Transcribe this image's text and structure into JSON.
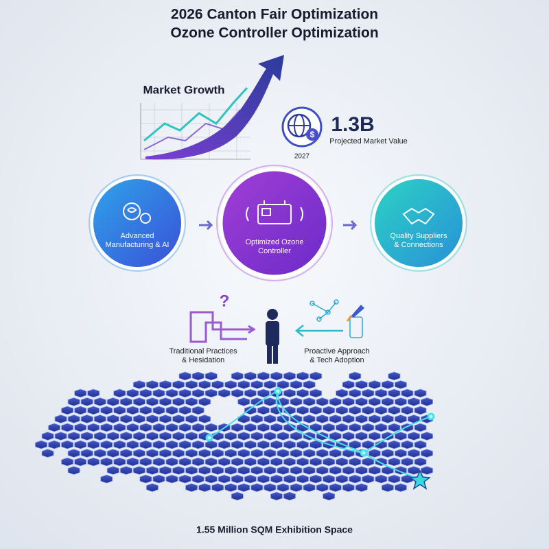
{
  "header": {
    "title": "2026 Canton Fair Optimization",
    "subtitle": "Ozone Controller Optimization"
  },
  "market": {
    "label": "Market Growth",
    "value": "1.3B",
    "caption": "Projected Market Value",
    "year": "2027"
  },
  "stages": [
    {
      "lines": [
        "Advanced",
        "Manufacturing & AI"
      ]
    },
    {
      "lines": [
        "Optimized Ozone",
        "Controller"
      ]
    },
    {
      "lines": [
        "Quality Suppliers",
        "& Connections"
      ]
    }
  ],
  "paths": {
    "symbol": "?",
    "left": {
      "lines": [
        "Traditional Practices",
        "& Hesidation"
      ]
    },
    "right": {
      "lines": [
        "Proactive Approach",
        "& Tech Adoption"
      ]
    }
  },
  "footer": "1.55 Million SQM Exhibition Space"
}
